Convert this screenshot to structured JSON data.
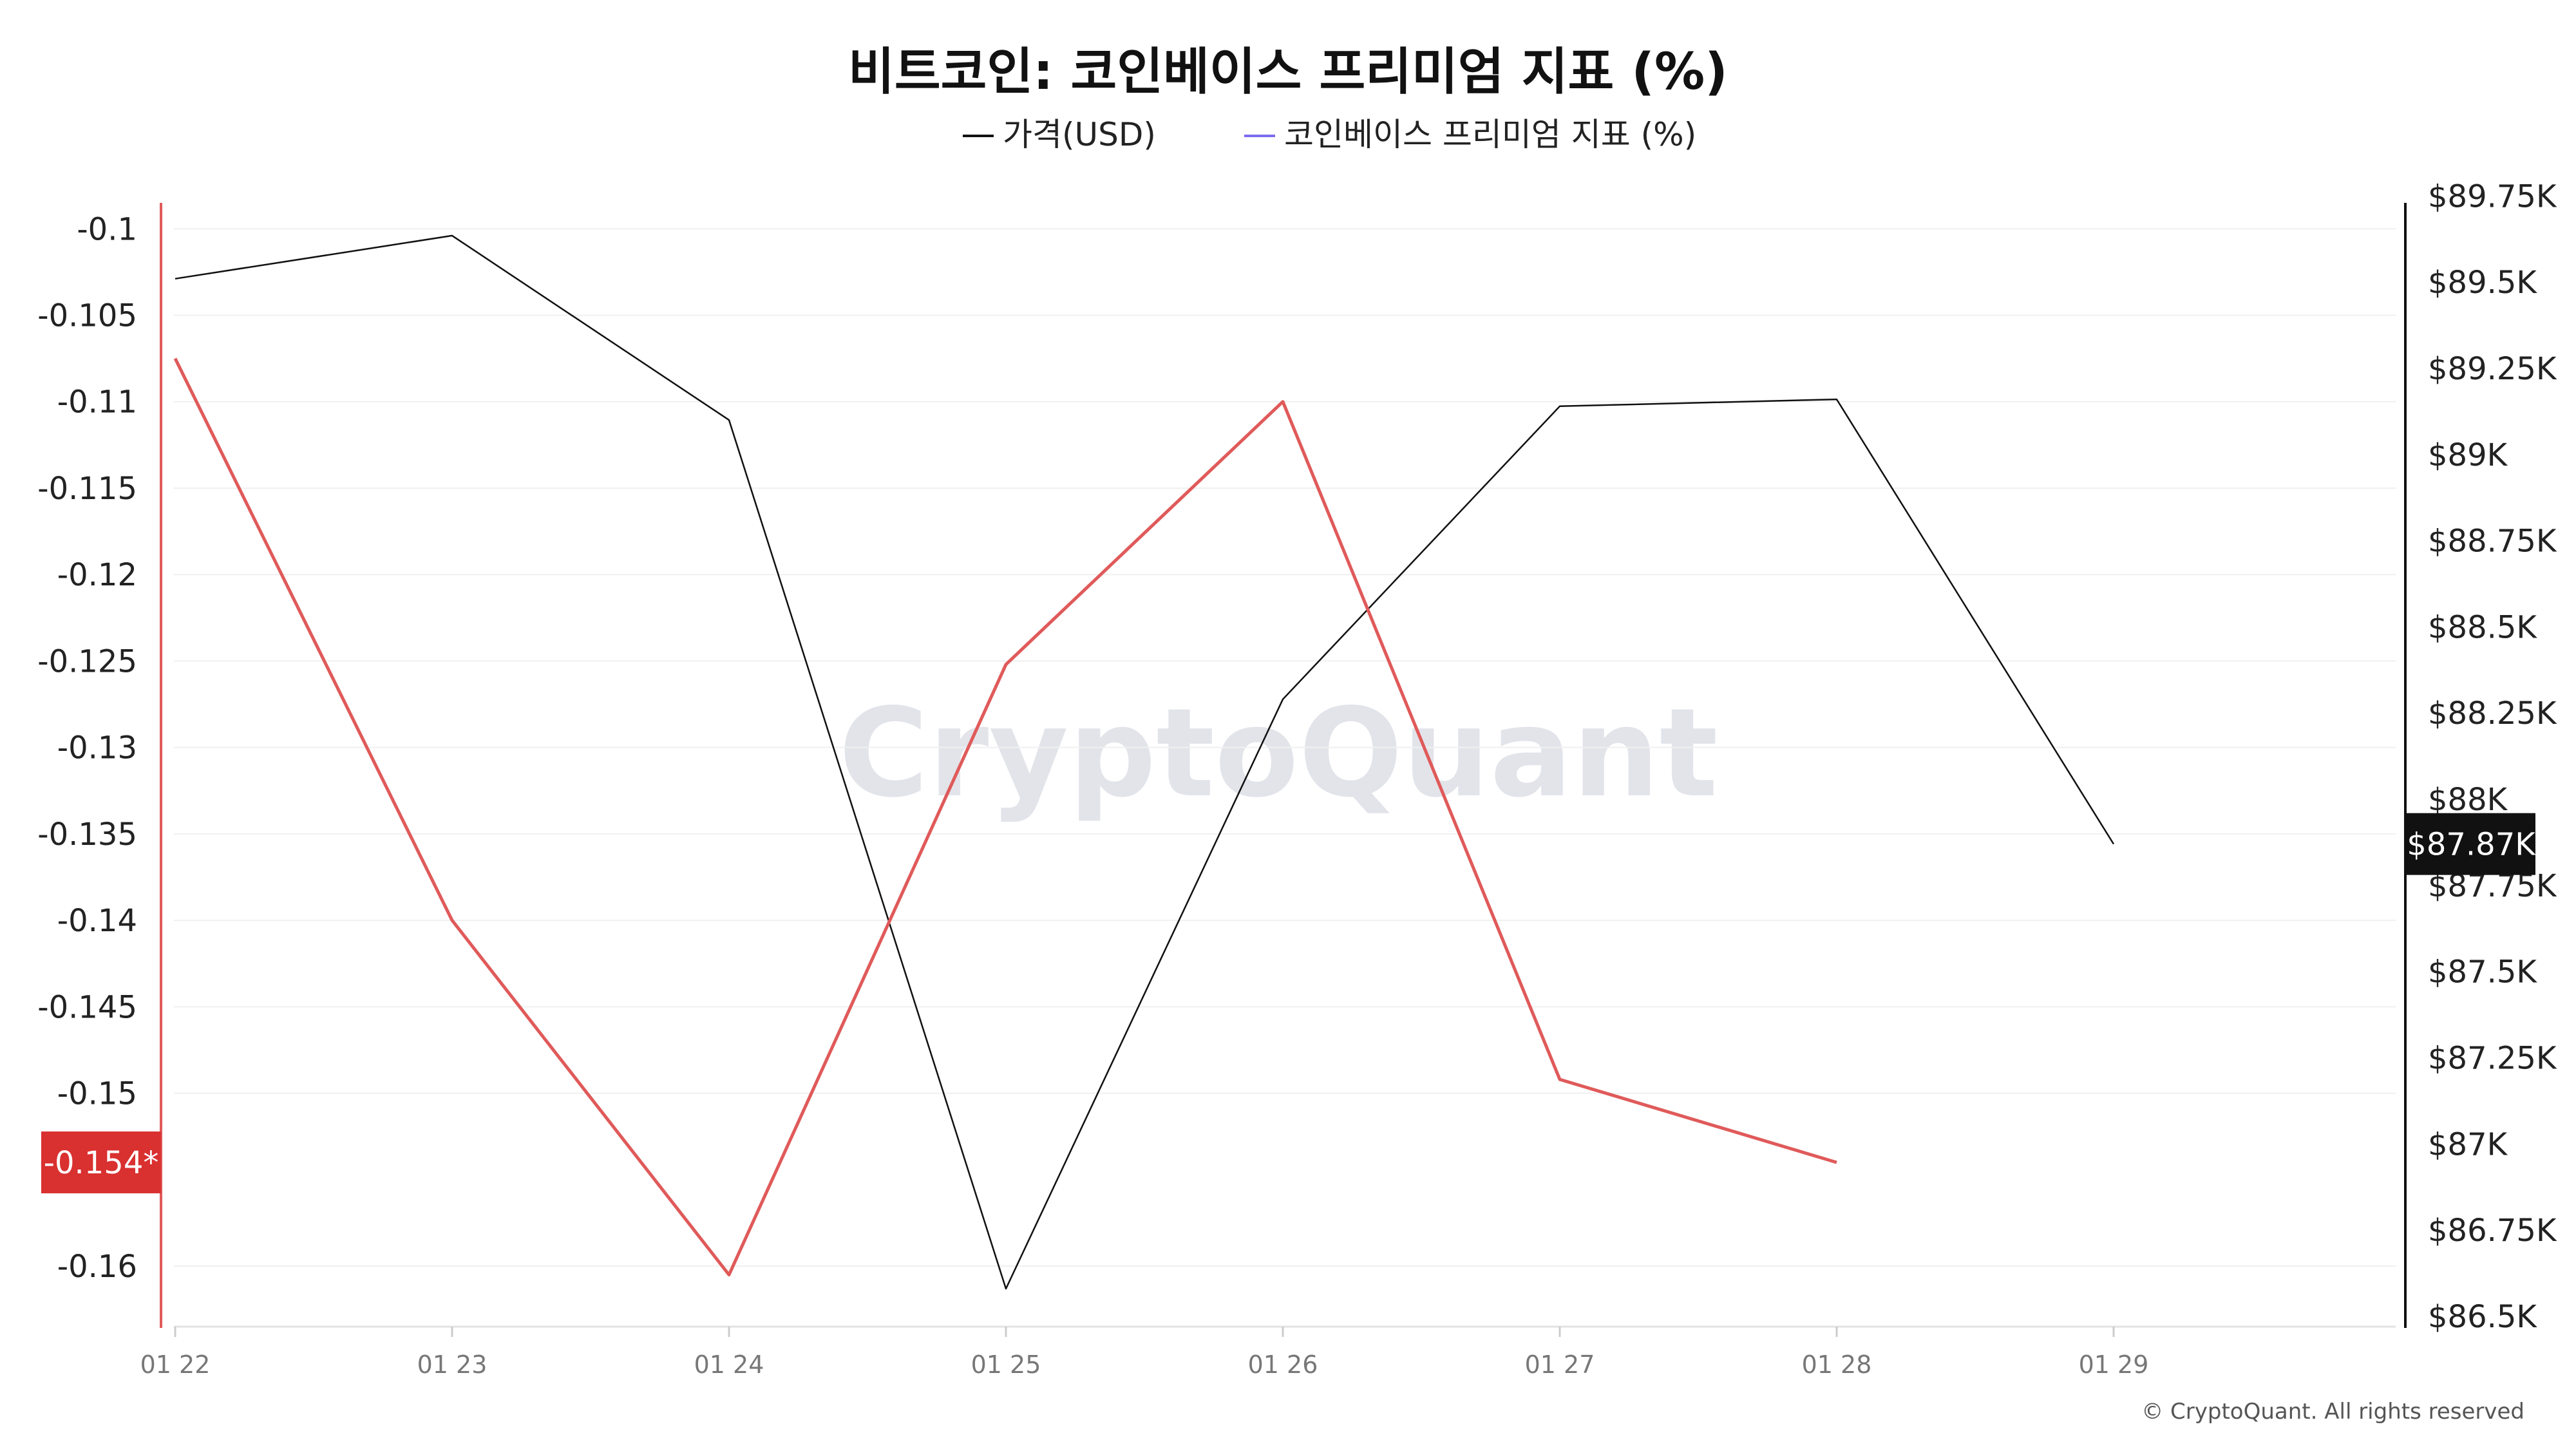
{
  "chart_data": {
    "type": "line",
    "title": "비트코인: 코인베이스 프리미엄 지표 (%)",
    "categories": [
      "01 22",
      "01 23",
      "01 24",
      "01 25",
      "01 26",
      "01 27",
      "01 28",
      "01 29"
    ],
    "series": [
      {
        "name": "가격(USD)",
        "axis": "right",
        "color": "#111111",
        "values": [
          89510,
          89635,
          89100,
          86580,
          88290,
          89140,
          89160,
          87870
        ]
      },
      {
        "name": "코인베이스 프리미엄 지표 (%)",
        "axis": "left",
        "color": "#e05a5a",
        "legend_color": "#7b6cf0",
        "values": [
          -0.1075,
          -0.14,
          -0.1605,
          -0.1252,
          -0.11,
          -0.1492,
          -0.154,
          null
        ]
      }
    ],
    "left_axis": {
      "ylim": [
        -0.1635,
        -0.0985
      ],
      "ticks": [
        -0.1,
        -0.105,
        -0.11,
        -0.115,
        -0.12,
        -0.125,
        -0.13,
        -0.135,
        -0.14,
        -0.145,
        -0.15,
        -0.16
      ],
      "tick_labels": [
        "-0.1",
        "-0.105",
        "-0.11",
        "-0.115",
        "-0.12",
        "-0.125",
        "-0.13",
        "-0.135",
        "-0.14",
        "-0.145",
        "-0.15",
        "-0.16"
      ],
      "color": "#e05a5a"
    },
    "right_axis": {
      "ylim": [
        86470,
        89730
      ],
      "ticks": [
        89750,
        89500,
        89250,
        89000,
        88750,
        88500,
        88250,
        88000,
        87750,
        87500,
        87250,
        87000,
        86750,
        86500
      ],
      "tick_labels": [
        "$89.75K",
        "$89.5K",
        "$89.25K",
        "$89K",
        "$88.75K",
        "$88.5K",
        "$88.25K",
        "$88K",
        "$87.75K",
        "$87.5K",
        "$87.25K",
        "$87K",
        "$86.75K",
        "$86.5K"
      ],
      "color": "#111111"
    },
    "left_badge": {
      "label": "-0.154*",
      "value": -0.154,
      "color": "#d93030"
    },
    "right_badge": {
      "label": "$87.87K",
      "value": 87870,
      "color": "#111111"
    },
    "grid": "horizontal",
    "legend_placement": "top-center"
  },
  "watermark": "CryptoQuant",
  "copyright": "© CryptoQuant. All rights reserved"
}
